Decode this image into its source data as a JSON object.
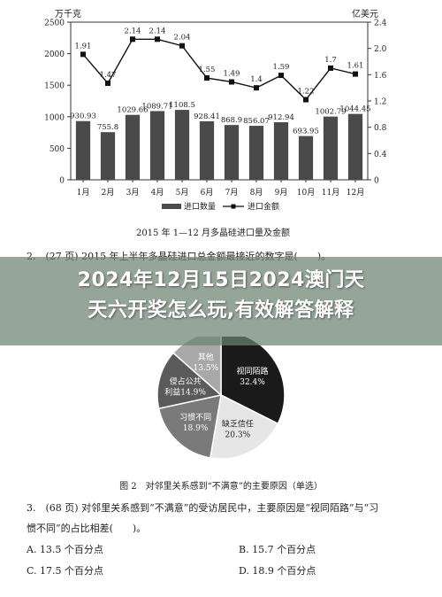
{
  "chart_data": [
    {
      "type": "bar+line",
      "title": "2015 年 1—12 月多晶硅进口量及金额",
      "categories": [
        "1月",
        "2月",
        "3月",
        "4月",
        "5月",
        "6月",
        "7月",
        "8月",
        "9月",
        "10月",
        "11月",
        "12月"
      ],
      "left_axis": {
        "unit": "万千克",
        "ticks": [
          "0",
          "500",
          "1000",
          "1500",
          "2000",
          "2500"
        ],
        "ylim": [
          0,
          2500
        ]
      },
      "right_axis": {
        "unit": "亿美元",
        "ticks": [
          "0",
          "0.4",
          "0.8",
          "1.2",
          "1.6",
          "2.0",
          "2.4"
        ],
        "ylim": [
          0,
          2.4
        ]
      },
      "series": [
        {
          "name": "进口数量",
          "type": "bar",
          "axis": "left",
          "values": [
            930.93,
            755.8,
            1029.66,
            1089.71,
            1108.5,
            928.41,
            868.9,
            856.07,
            912.94,
            693.95,
            1002.79,
            1044.45
          ],
          "labels": [
            "930.93",
            "755.8",
            "1029.66",
            "1089.71",
            "1108.5",
            "928.41",
            "868.9",
            "856.07",
            "912.94",
            "693.95",
            "1002.79",
            "1044.45"
          ]
        },
        {
          "name": "进口金额",
          "type": "line",
          "axis": "right",
          "values": [
            1.91,
            1.47,
            2.14,
            2.14,
            2.04,
            1.55,
            1.49,
            1.4,
            1.59,
            1.22,
            1.7,
            1.61
          ],
          "labels": [
            "1.91",
            "1.47",
            "2.14",
            "2.14",
            "2.04",
            "1.55",
            "1.49",
            "1.4",
            "1.59",
            "1.22",
            "1.7",
            "1.61"
          ]
        }
      ],
      "colors": {
        "bars": "#4a4a4a",
        "line": "#111111"
      }
    },
    {
      "type": "pie",
      "title": "图 2　对邻里关系感到“不满意”的主要原因（单选）",
      "slices": [
        {
          "label": "视同陌路",
          "value": 32.4,
          "value_label": "32.4%",
          "color": "#1a1a1a",
          "text_color": "#ffffff"
        },
        {
          "label": "缺乏信任",
          "value": 20.3,
          "value_label": "20.3%",
          "color": "#e6e6e6",
          "text_color": "#222222"
        },
        {
          "label": "习惯不同",
          "value": 18.9,
          "value_label": "18.9%",
          "color": "#7a7a7a",
          "text_color": "#ffffff"
        },
        {
          "label": "侵占公共利益",
          "line1": "侵占公共",
          "line2": "利益",
          "value": 14.9,
          "value_label": "14.9%",
          "color": "#5a5a5a",
          "text_color": "#ffffff"
        },
        {
          "label": "其他",
          "value": 13.5,
          "value_label": "13.5%",
          "color": "#a8a8a8",
          "text_color": "#ffffff"
        }
      ]
    }
  ],
  "question2": {
    "text": "2.　(27 页) 2015 年上半年多晶硅进口总金额最接近的数字是(　　)。"
  },
  "banner": {
    "line1": "2024年12月15日2024澳门天",
    "line2": "天六开奖怎么玩,有效解答解释"
  },
  "question3": {
    "line1": "3.　(68 页) 对邻里关系感到“不满意”的受访居民中，主要原因是“视同陌路”与“习",
    "line2": "惯不同”的占比相差(　　)。"
  },
  "options": {
    "a": "A.  13.5 个百分点",
    "b": "B.  15.7 个百分点",
    "c": "C.  17.5 个百分点",
    "d": "D.  18.9 个百分点"
  }
}
